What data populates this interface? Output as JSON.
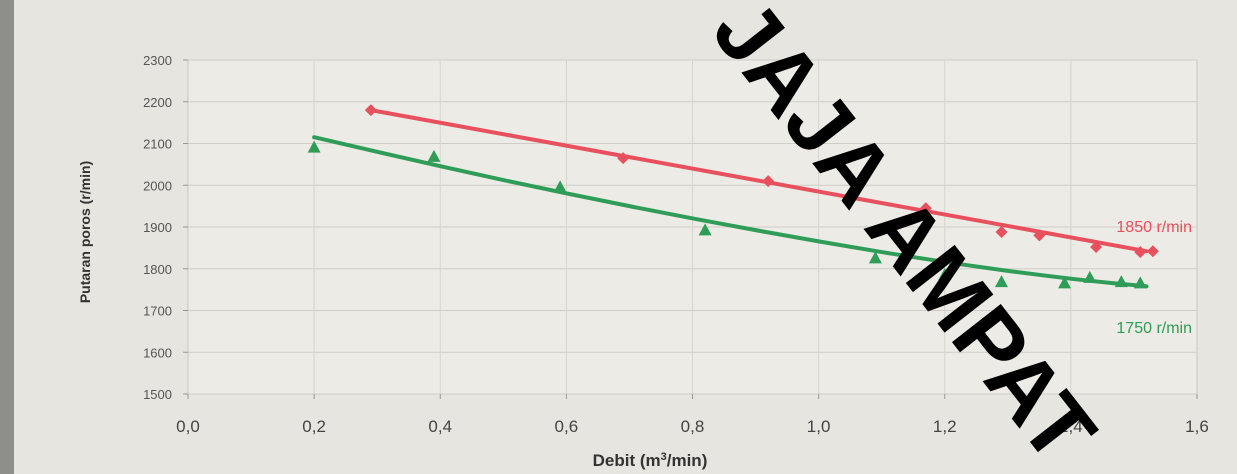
{
  "chart_data": {
    "type": "scatter",
    "xlabel": "Debit (m³/min)",
    "ylabel": "Putaran poros (r/min)",
    "xlim": [
      0,
      1.6
    ],
    "ylim": [
      1500,
      2300
    ],
    "xticks": [
      "0,0",
      "0,2",
      "0,4",
      "0,6",
      "0,8",
      "1,0",
      "1,2",
      "1,4",
      "1,6"
    ],
    "yticks": [
      "1500",
      "1600",
      "1700",
      "1800",
      "1900",
      "2000",
      "2100",
      "2200",
      "2300"
    ],
    "grid": true,
    "series": [
      {
        "name": "1850 r/min",
        "color": "#e8505e",
        "marker": "diamond",
        "points": [
          [
            0.29,
            2180
          ],
          [
            0.69,
            2065
          ],
          [
            0.92,
            2010
          ],
          [
            1.17,
            1945
          ],
          [
            1.29,
            1888
          ],
          [
            1.35,
            1880
          ],
          [
            1.44,
            1852
          ],
          [
            1.51,
            1840
          ],
          [
            1.53,
            1842
          ]
        ],
        "trend": [
          [
            0.29,
            2180
          ],
          [
            1.52,
            1842
          ]
        ]
      },
      {
        "name": "1750 r/min",
        "color": "#2f9d57",
        "marker": "triangle",
        "points": [
          [
            0.2,
            2090
          ],
          [
            0.39,
            2068
          ],
          [
            0.59,
            1995
          ],
          [
            0.82,
            1892
          ],
          [
            1.09,
            1825
          ],
          [
            1.2,
            1785
          ],
          [
            1.29,
            1768
          ],
          [
            1.39,
            1765
          ],
          [
            1.43,
            1778
          ],
          [
            1.48,
            1768
          ],
          [
            1.51,
            1765
          ]
        ],
        "trend": [
          [
            0.2,
            2115
          ],
          [
            0.4,
            2045
          ],
          [
            0.6,
            1980
          ],
          [
            0.8,
            1920
          ],
          [
            1.0,
            1865
          ],
          [
            1.2,
            1815
          ],
          [
            1.4,
            1775
          ],
          [
            1.52,
            1758
          ]
        ]
      }
    ]
  },
  "watermark": "JAJA AMPAT"
}
